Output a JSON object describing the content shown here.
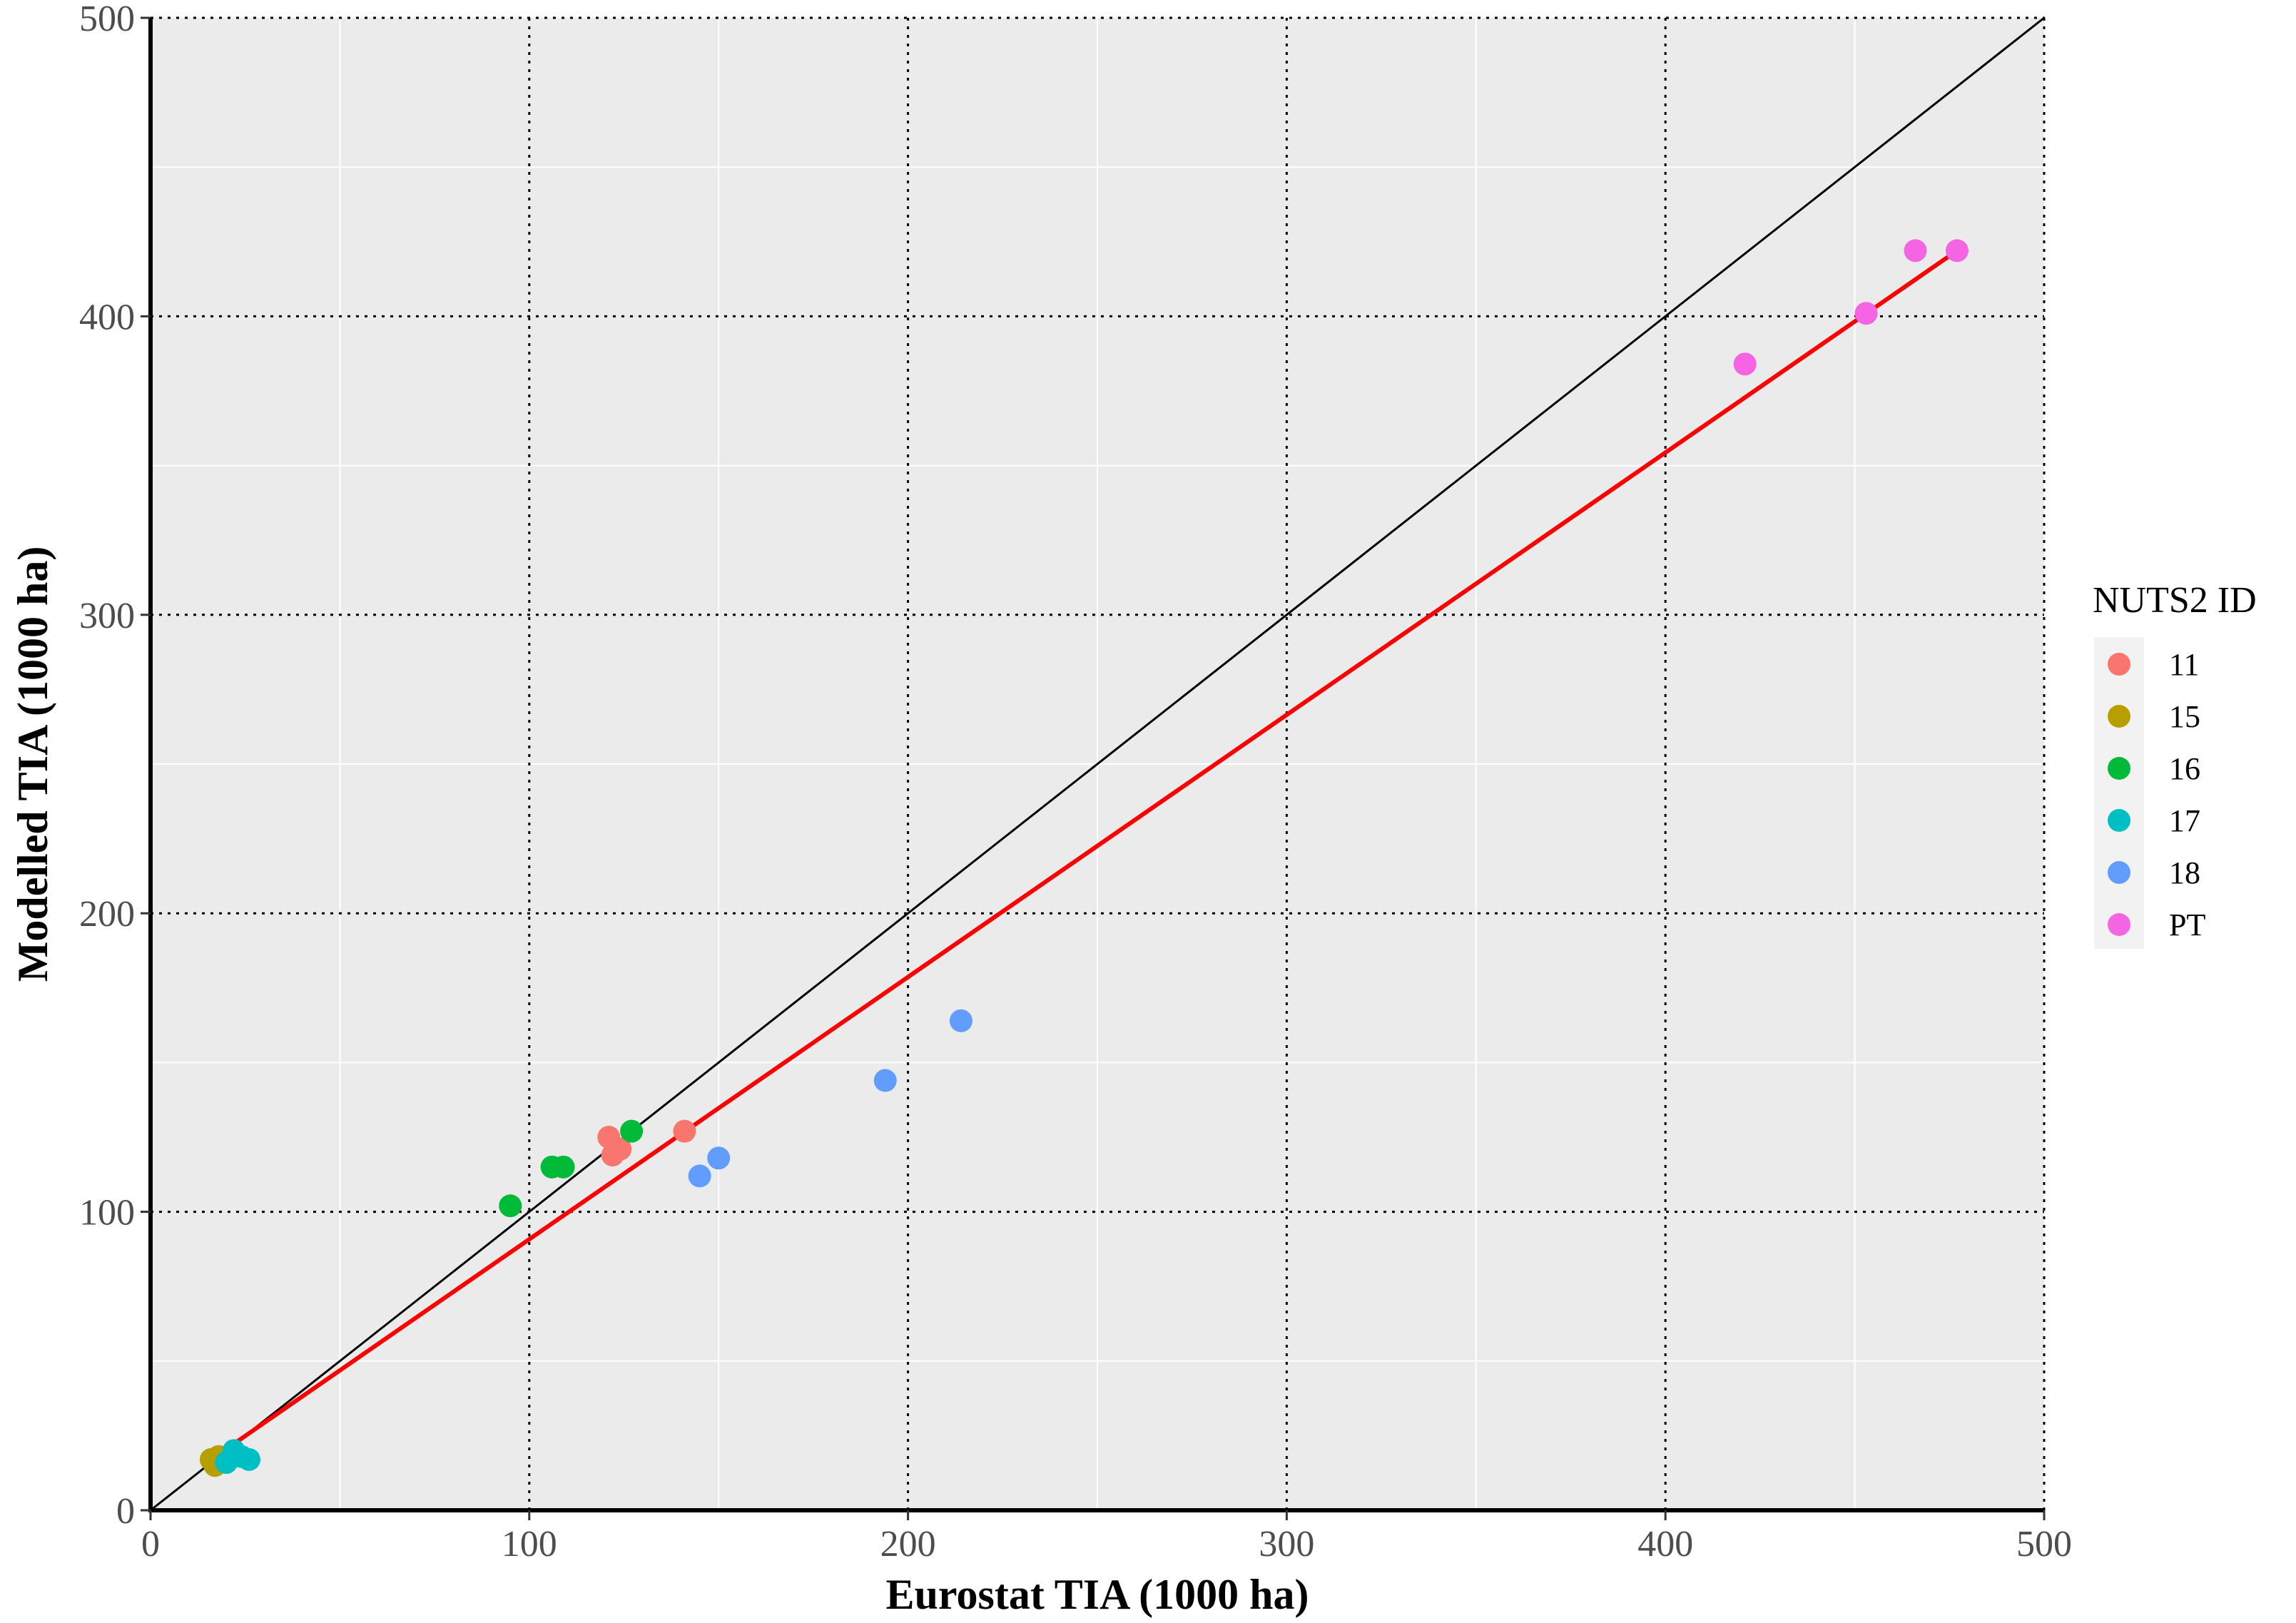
{
  "chart_data": {
    "type": "scatter",
    "title": "",
    "xlabel": "Eurostat TIA (1000 ha)",
    "ylabel": "Modelled TIA (1000 ha)",
    "xlim": [
      0,
      500
    ],
    "ylim": [
      0,
      500
    ],
    "x_ticks": [
      "0",
      "100",
      "200",
      "300",
      "400",
      "500"
    ],
    "y_ticks": [
      "0",
      "100",
      "200",
      "300",
      "400",
      "500"
    ],
    "grid": true,
    "legend": {
      "title": "NUTS2 ID",
      "position": "right",
      "entries": [
        "11",
        "15",
        "16",
        "17",
        "18",
        "PT"
      ]
    },
    "series": [
      {
        "name": "11",
        "color": "#F8766D",
        "points": [
          [
            121,
            125
          ],
          [
            122,
            119
          ],
          [
            124,
            121
          ],
          [
            141,
            127
          ]
        ]
      },
      {
        "name": "15",
        "color": "#B79F00",
        "points": [
          [
            16,
            17
          ],
          [
            17,
            15
          ],
          [
            18,
            18
          ],
          [
            19,
            17
          ]
        ]
      },
      {
        "name": "16",
        "color": "#00BA38",
        "points": [
          [
            95,
            102
          ],
          [
            106,
            115
          ],
          [
            109,
            115
          ],
          [
            127,
            127
          ]
        ]
      },
      {
        "name": "17",
        "color": "#00BFC4",
        "points": [
          [
            20,
            16
          ],
          [
            22,
            20
          ],
          [
            24,
            18
          ],
          [
            26,
            17
          ]
        ]
      },
      {
        "name": "18",
        "color": "#619CFF",
        "points": [
          [
            145,
            112
          ],
          [
            150,
            118
          ],
          [
            194,
            144
          ],
          [
            214,
            164
          ]
        ]
      },
      {
        "name": "PT",
        "color": "#F564E3",
        "points": [
          [
            421,
            384
          ],
          [
            453,
            401
          ],
          [
            466,
            422
          ],
          [
            477,
            422
          ]
        ]
      }
    ],
    "reference_lines": [
      {
        "name": "1:1 line",
        "color": "#000000",
        "from": [
          0,
          0
        ],
        "to": [
          500,
          500
        ]
      },
      {
        "name": "regression line",
        "color": "#FF0000",
        "from": [
          16,
          17
        ],
        "to": [
          477,
          422
        ]
      }
    ]
  }
}
